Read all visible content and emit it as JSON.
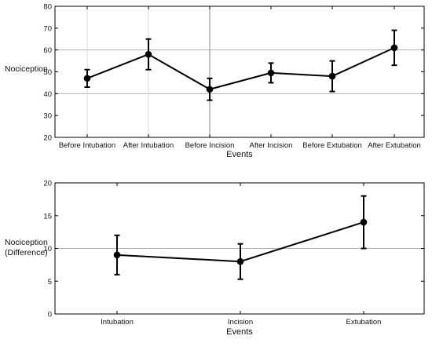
{
  "colors": {
    "line": "#000000",
    "grid": "#b0b0b0",
    "axis": "#000000",
    "background": "#ffffff"
  },
  "chart_data": [
    {
      "type": "line",
      "title": "",
      "xlabel": "Events",
      "ylabel": "Nociception",
      "ylim": [
        20,
        80
      ],
      "yticks": [
        "20",
        "30",
        "40",
        "50",
        "60",
        "70",
        "80"
      ],
      "grid": "partial",
      "categories": [
        "Before Intubation",
        "After Intubation",
        "Before Incision",
        "After Incision",
        "Before Extubation",
        "After Extubation"
      ],
      "series": [
        {
          "values": [
            47,
            58,
            42,
            49.5,
            48,
            61
          ],
          "error": [
            4,
            7,
            5,
            4.5,
            7,
            8
          ]
        }
      ]
    },
    {
      "type": "line",
      "title": "",
      "xlabel": "Events",
      "ylabel": [
        "Nociception",
        "(Difference)"
      ],
      "ylim": [
        0,
        20
      ],
      "yticks": [
        "0",
        "5",
        "10",
        "15",
        "20"
      ],
      "grid": "y=10",
      "categories": [
        "Intubation",
        "Incision",
        "Extubation"
      ],
      "series": [
        {
          "values": [
            9,
            8,
            14
          ],
          "error": [
            3,
            2.7,
            4
          ]
        }
      ]
    }
  ]
}
